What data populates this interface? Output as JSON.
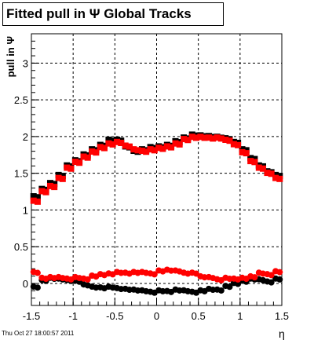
{
  "title": "Fitted pull in  Ψ   Global Tracks",
  "footer": "Thu Oct 27 18:00:57 2011",
  "chart_data": {
    "type": "scatter",
    "title": "Fitted pull in  Ψ   Global Tracks",
    "xlabel": "η",
    "ylabel": "pull in Ψ",
    "xlim": [
      -1.5,
      1.5
    ],
    "ylim": [
      -0.3,
      3.4
    ],
    "grid": true,
    "xticks": [
      "-1.5",
      "-1",
      "-0.5",
      "0",
      "0.5",
      "1",
      "1.5"
    ],
    "yticks": [
      "0",
      "0.5",
      "1",
      "1.5",
      "2",
      "2.5",
      "3"
    ],
    "series": [
      {
        "marker": "circle",
        "color": "#000000",
        "x": [
          -1.45,
          -1.35,
          -1.25,
          -1.15,
          -1.05,
          -0.95,
          -0.85,
          -0.75,
          -0.65,
          -0.55,
          -0.45,
          -0.35,
          -0.25,
          -0.15,
          -0.05,
          0.05,
          0.15,
          0.25,
          0.35,
          0.45,
          0.55,
          0.65,
          0.75,
          0.85,
          0.95,
          1.05,
          1.15,
          1.25,
          1.35,
          1.45
        ],
        "y": [
          -0.05,
          0.04,
          0.07,
          0.06,
          0.04,
          0.03,
          -0.02,
          -0.05,
          -0.06,
          -0.05,
          -0.07,
          -0.08,
          -0.09,
          -0.1,
          -0.12,
          -0.1,
          -0.11,
          -0.09,
          -0.1,
          -0.12,
          -0.1,
          -0.08,
          -0.09,
          -0.04,
          0.0,
          0.03,
          0.06,
          0.05,
          0.02,
          0.06
        ]
      },
      {
        "marker": "circle",
        "color": "#ff0000",
        "x": [
          -1.45,
          -1.35,
          -1.25,
          -1.15,
          -1.05,
          -0.95,
          -0.85,
          -0.75,
          -0.65,
          -0.55,
          -0.45,
          -0.35,
          -0.25,
          -0.15,
          -0.05,
          0.05,
          0.15,
          0.25,
          0.35,
          0.45,
          0.55,
          0.65,
          0.75,
          0.85,
          0.95,
          1.05,
          1.15,
          1.25,
          1.35,
          1.45
        ],
        "y": [
          0.15,
          0.07,
          0.08,
          0.08,
          0.06,
          0.08,
          0.06,
          0.1,
          0.12,
          0.13,
          0.15,
          0.14,
          0.15,
          0.15,
          0.13,
          0.17,
          0.18,
          0.17,
          0.14,
          0.14,
          0.09,
          0.08,
          0.05,
          0.07,
          0.06,
          0.07,
          0.09,
          0.14,
          0.12,
          0.16
        ]
      },
      {
        "marker": "square",
        "color": "#000000",
        "x": [
          -1.45,
          -1.35,
          -1.25,
          -1.15,
          -1.05,
          -0.95,
          -0.85,
          -0.75,
          -0.65,
          -0.55,
          -0.45,
          -0.35,
          -0.25,
          -0.15,
          -0.05,
          0.05,
          0.15,
          0.25,
          0.35,
          0.45,
          0.55,
          0.65,
          0.75,
          0.85,
          0.95,
          1.05,
          1.15,
          1.25,
          1.35,
          1.45
        ],
        "y": [
          1.18,
          1.28,
          1.36,
          1.47,
          1.6,
          1.67,
          1.75,
          1.82,
          1.88,
          1.95,
          1.95,
          1.86,
          1.8,
          1.82,
          1.85,
          1.86,
          1.88,
          1.93,
          1.98,
          2.02,
          2.01,
          2.0,
          1.99,
          1.97,
          1.92,
          1.82,
          1.7,
          1.6,
          1.52,
          1.47
        ]
      },
      {
        "marker": "square",
        "color": "#ff0000",
        "x": [
          -1.45,
          -1.35,
          -1.25,
          -1.15,
          -1.05,
          -0.95,
          -0.85,
          -0.75,
          -0.65,
          -0.55,
          -0.45,
          -0.35,
          -0.25,
          -0.15,
          -0.05,
          0.05,
          0.15,
          0.25,
          0.35,
          0.45,
          0.55,
          0.65,
          0.75,
          0.85,
          0.95,
          1.05,
          1.15,
          1.25,
          1.35,
          1.45
        ],
        "y": [
          1.12,
          1.25,
          1.32,
          1.43,
          1.57,
          1.65,
          1.72,
          1.79,
          1.85,
          1.9,
          1.92,
          1.87,
          1.82,
          1.8,
          1.82,
          1.84,
          1.86,
          1.9,
          1.96,
          1.99,
          1.99,
          1.98,
          1.98,
          1.95,
          1.89,
          1.78,
          1.66,
          1.57,
          1.5,
          1.43
        ]
      }
    ]
  }
}
